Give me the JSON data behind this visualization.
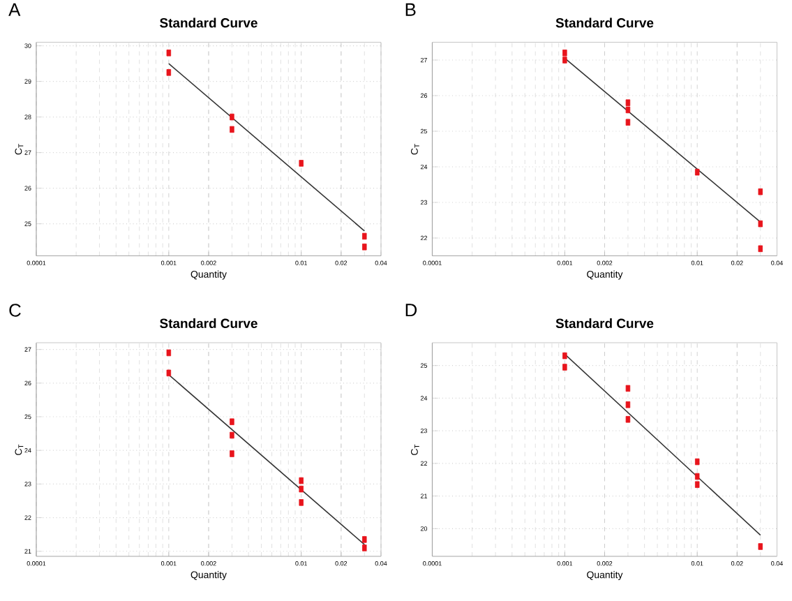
{
  "chart_data": [
    {
      "type": "scatter",
      "title": "Standard Curve",
      "xlabel": "Quantity",
      "ylabel": "C$_{T}$",
      "annotations": [
        "A"
      ],
      "log": "x",
      "grid": true,
      "marker": "square",
      "xlim": [
        0.0001,
        0.04
      ],
      "xticks": [
        0.0001,
        0.001,
        0.002,
        0.01,
        0.02,
        0.04
      ],
      "ylim": [
        24.1,
        30.1
      ],
      "yticks": [
        25,
        26,
        27,
        28,
        29,
        30
      ],
      "series": [
        {
          "color": "#e8141c",
          "x": [
            0.001,
            0.001,
            0.003,
            0.003,
            0.01,
            0.03,
            0.03
          ],
          "values": [
            29.8,
            29.25,
            28.0,
            27.65,
            26.7,
            24.65,
            24.35
          ]
        },
        {
          "type": "line",
          "marker": "none",
          "color": "#333333",
          "x": [
            0.001,
            0.03
          ],
          "values": [
            29.5,
            24.8
          ]
        }
      ]
    },
    {
      "type": "scatter",
      "title": "Standard Curve",
      "xlabel": "Quantity",
      "ylabel": "C$_{T}$",
      "annotations": [
        "B"
      ],
      "log": "x",
      "grid": true,
      "marker": "square",
      "xlim": [
        0.0001,
        0.04
      ],
      "xticks": [
        0.0001,
        0.001,
        0.002,
        0.01,
        0.02,
        0.04
      ],
      "ylim": [
        21.5,
        27.5
      ],
      "yticks": [
        22,
        23,
        24,
        25,
        26,
        27
      ],
      "series": [
        {
          "color": "#e8141c",
          "x": [
            0.001,
            0.001,
            0.003,
            0.003,
            0.003,
            0.01,
            0.03,
            0.03,
            0.03
          ],
          "values": [
            27.2,
            27.0,
            25.8,
            25.6,
            25.25,
            23.85,
            23.3,
            22.4,
            21.7
          ]
        },
        {
          "type": "line",
          "marker": "none",
          "color": "#333333",
          "x": [
            0.001,
            0.03
          ],
          "values": [
            27.05,
            22.45
          ]
        }
      ]
    },
    {
      "type": "scatter",
      "title": "Standard Curve",
      "xlabel": "Quantity",
      "ylabel": "C$_{T}$",
      "annotations": [
        "C"
      ],
      "log": "x",
      "grid": true,
      "marker": "square",
      "xlim": [
        0.0001,
        0.04
      ],
      "xticks": [
        0.0001,
        0.001,
        0.002,
        0.01,
        0.02,
        0.04
      ],
      "ylim": [
        20.85,
        27.2
      ],
      "yticks": [
        21,
        22,
        23,
        24,
        25,
        26,
        27
      ],
      "series": [
        {
          "color": "#e8141c",
          "x": [
            0.001,
            0.001,
            0.003,
            0.003,
            0.003,
            0.01,
            0.01,
            0.01,
            0.03,
            0.03
          ],
          "values": [
            26.9,
            26.3,
            24.85,
            24.45,
            23.9,
            23.1,
            22.85,
            22.45,
            21.35,
            21.1
          ]
        },
        {
          "type": "line",
          "marker": "none",
          "color": "#333333",
          "x": [
            0.001,
            0.03
          ],
          "values": [
            26.25,
            21.2
          ]
        }
      ]
    },
    {
      "type": "scatter",
      "title": "Standard Curve",
      "xlabel": "Quantity",
      "ylabel": "C$_{T}$",
      "annotations": [
        "D"
      ],
      "log": "x",
      "grid": true,
      "marker": "square",
      "xlim": [
        0.0001,
        0.04
      ],
      "xticks": [
        0.0001,
        0.001,
        0.002,
        0.01,
        0.02,
        0.04
      ],
      "ylim": [
        19.15,
        25.7
      ],
      "yticks": [
        20,
        21,
        22,
        23,
        24,
        25
      ],
      "series": [
        {
          "color": "#e8141c",
          "x": [
            0.001,
            0.001,
            0.003,
            0.003,
            0.003,
            0.01,
            0.01,
            0.01,
            0.03
          ],
          "values": [
            25.3,
            24.95,
            24.3,
            23.8,
            23.35,
            22.05,
            21.6,
            21.35,
            19.45
          ]
        },
        {
          "type": "line",
          "marker": "none",
          "color": "#333333",
          "x": [
            0.001,
            0.03
          ],
          "values": [
            25.35,
            19.8
          ]
        }
      ]
    }
  ]
}
